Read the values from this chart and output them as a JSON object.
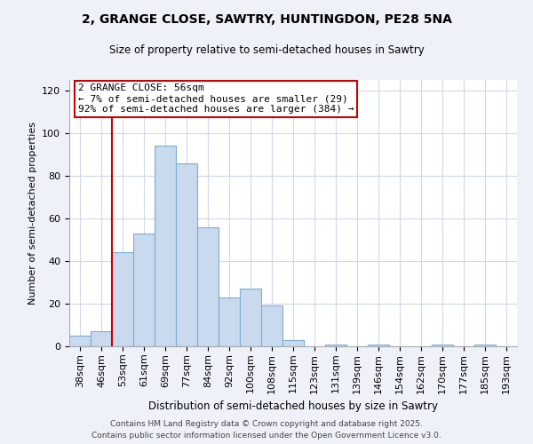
{
  "title_line1": "2, GRANGE CLOSE, SAWTRY, HUNTINGDON, PE28 5NA",
  "title_line2": "Size of property relative to semi-detached houses in Sawtry",
  "xlabel": "Distribution of semi-detached houses by size in Sawtry",
  "ylabel": "Number of semi-detached properties",
  "bin_labels": [
    "38sqm",
    "46sqm",
    "53sqm",
    "61sqm",
    "69sqm",
    "77sqm",
    "84sqm",
    "92sqm",
    "100sqm",
    "108sqm",
    "115sqm",
    "123sqm",
    "131sqm",
    "139sqm",
    "146sqm",
    "154sqm",
    "162sqm",
    "170sqm",
    "177sqm",
    "185sqm",
    "193sqm"
  ],
  "bar_heights": [
    5,
    7,
    44,
    53,
    94,
    86,
    56,
    23,
    27,
    19,
    3,
    0,
    1,
    0,
    1,
    0,
    0,
    1,
    0,
    1,
    0
  ],
  "bar_color": "#c9d9ee",
  "bar_edge_color": "#7bafd4",
  "vline_color": "#cc0000",
  "vline_x": 2.0,
  "annotation_title": "2 GRANGE CLOSE: 56sqm",
  "annotation_line2": "← 7% of semi-detached houses are smaller (29)",
  "annotation_line3": "92% of semi-detached houses are larger (384) →",
  "ylim": [
    0,
    125
  ],
  "yticks": [
    0,
    20,
    40,
    60,
    80,
    100,
    120
  ],
  "footnote1": "Contains HM Land Registry data © Crown copyright and database right 2025.",
  "footnote2": "Contains public sector information licensed under the Open Government Licence v3.0.",
  "bg_color": "#eef1f8",
  "plot_bg_color": "#ffffff",
  "grid_color": "#d0d8ea",
  "title_fontsize": 10,
  "subtitle_fontsize": 8.5,
  "xlabel_fontsize": 8.5,
  "ylabel_fontsize": 8.0,
  "tick_fontsize": 8.0,
  "annot_fontsize": 8.0,
  "footnote_fontsize": 6.5
}
